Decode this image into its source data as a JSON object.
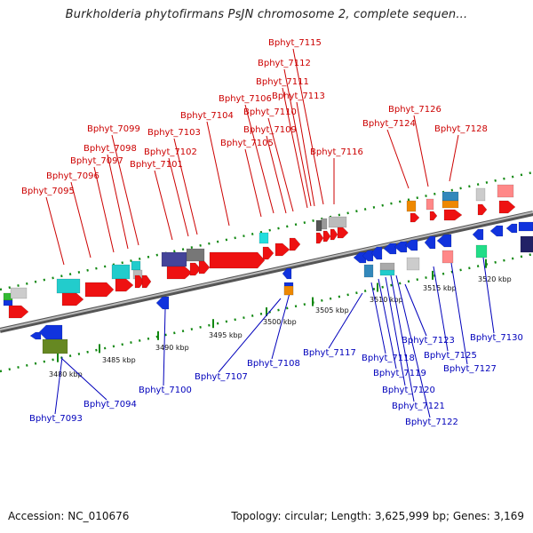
{
  "title": "Burkholderia phytofirmans PsJN chromosome 2, complete sequen...",
  "footer": {
    "accession": "Accession: NC_010676",
    "summary": "Topology: circular; Length: 3,625,999 bp; Genes: 3,169"
  },
  "ruler_ticks": [
    "3480 kbp",
    "3485 kbp",
    "3490 kbp",
    "3495 kbp",
    "3500 kbp",
    "3505 kbp",
    "3510 kbp",
    "3515 kbp",
    "3520 kbp"
  ],
  "forward_gene_labels": [
    "Bphyt_7095",
    "Bphyt_7096",
    "Bphyt_7097",
    "Bphyt_7098",
    "Bphyt_7099",
    "Bphyt_7101",
    "Bphyt_7102",
    "Bphyt_7103",
    "Bphyt_7104",
    "Bphyt_7105",
    "Bphyt_7106",
    "Bphyt_7109",
    "Bphyt_7110",
    "Bphyt_7111",
    "Bphyt_7112",
    "Bphyt_7113",
    "Bphyt_7115",
    "Bphyt_7116",
    "Bphyt_7124",
    "Bphyt_7126",
    "Bphyt_7128"
  ],
  "reverse_gene_labels": [
    "Bphyt_7093",
    "Bphyt_7094",
    "Bphyt_7100",
    "Bphyt_7107",
    "Bphyt_7108",
    "Bphyt_7117",
    "Bphyt_7118",
    "Bphyt_7119",
    "Bphyt_7120",
    "Bphyt_7121",
    "Bphyt_7122",
    "Bphyt_7123",
    "Bphyt_7125",
    "Bphyt_7127",
    "Bphyt_7130"
  ],
  "colors": {
    "forward_label": "#cc0000",
    "reverse_label": "#0000bb",
    "forward_gene": "#ee1111",
    "reverse_gene": "#1133dd",
    "backbone": "#999999",
    "tick_track": "#118811"
  }
}
